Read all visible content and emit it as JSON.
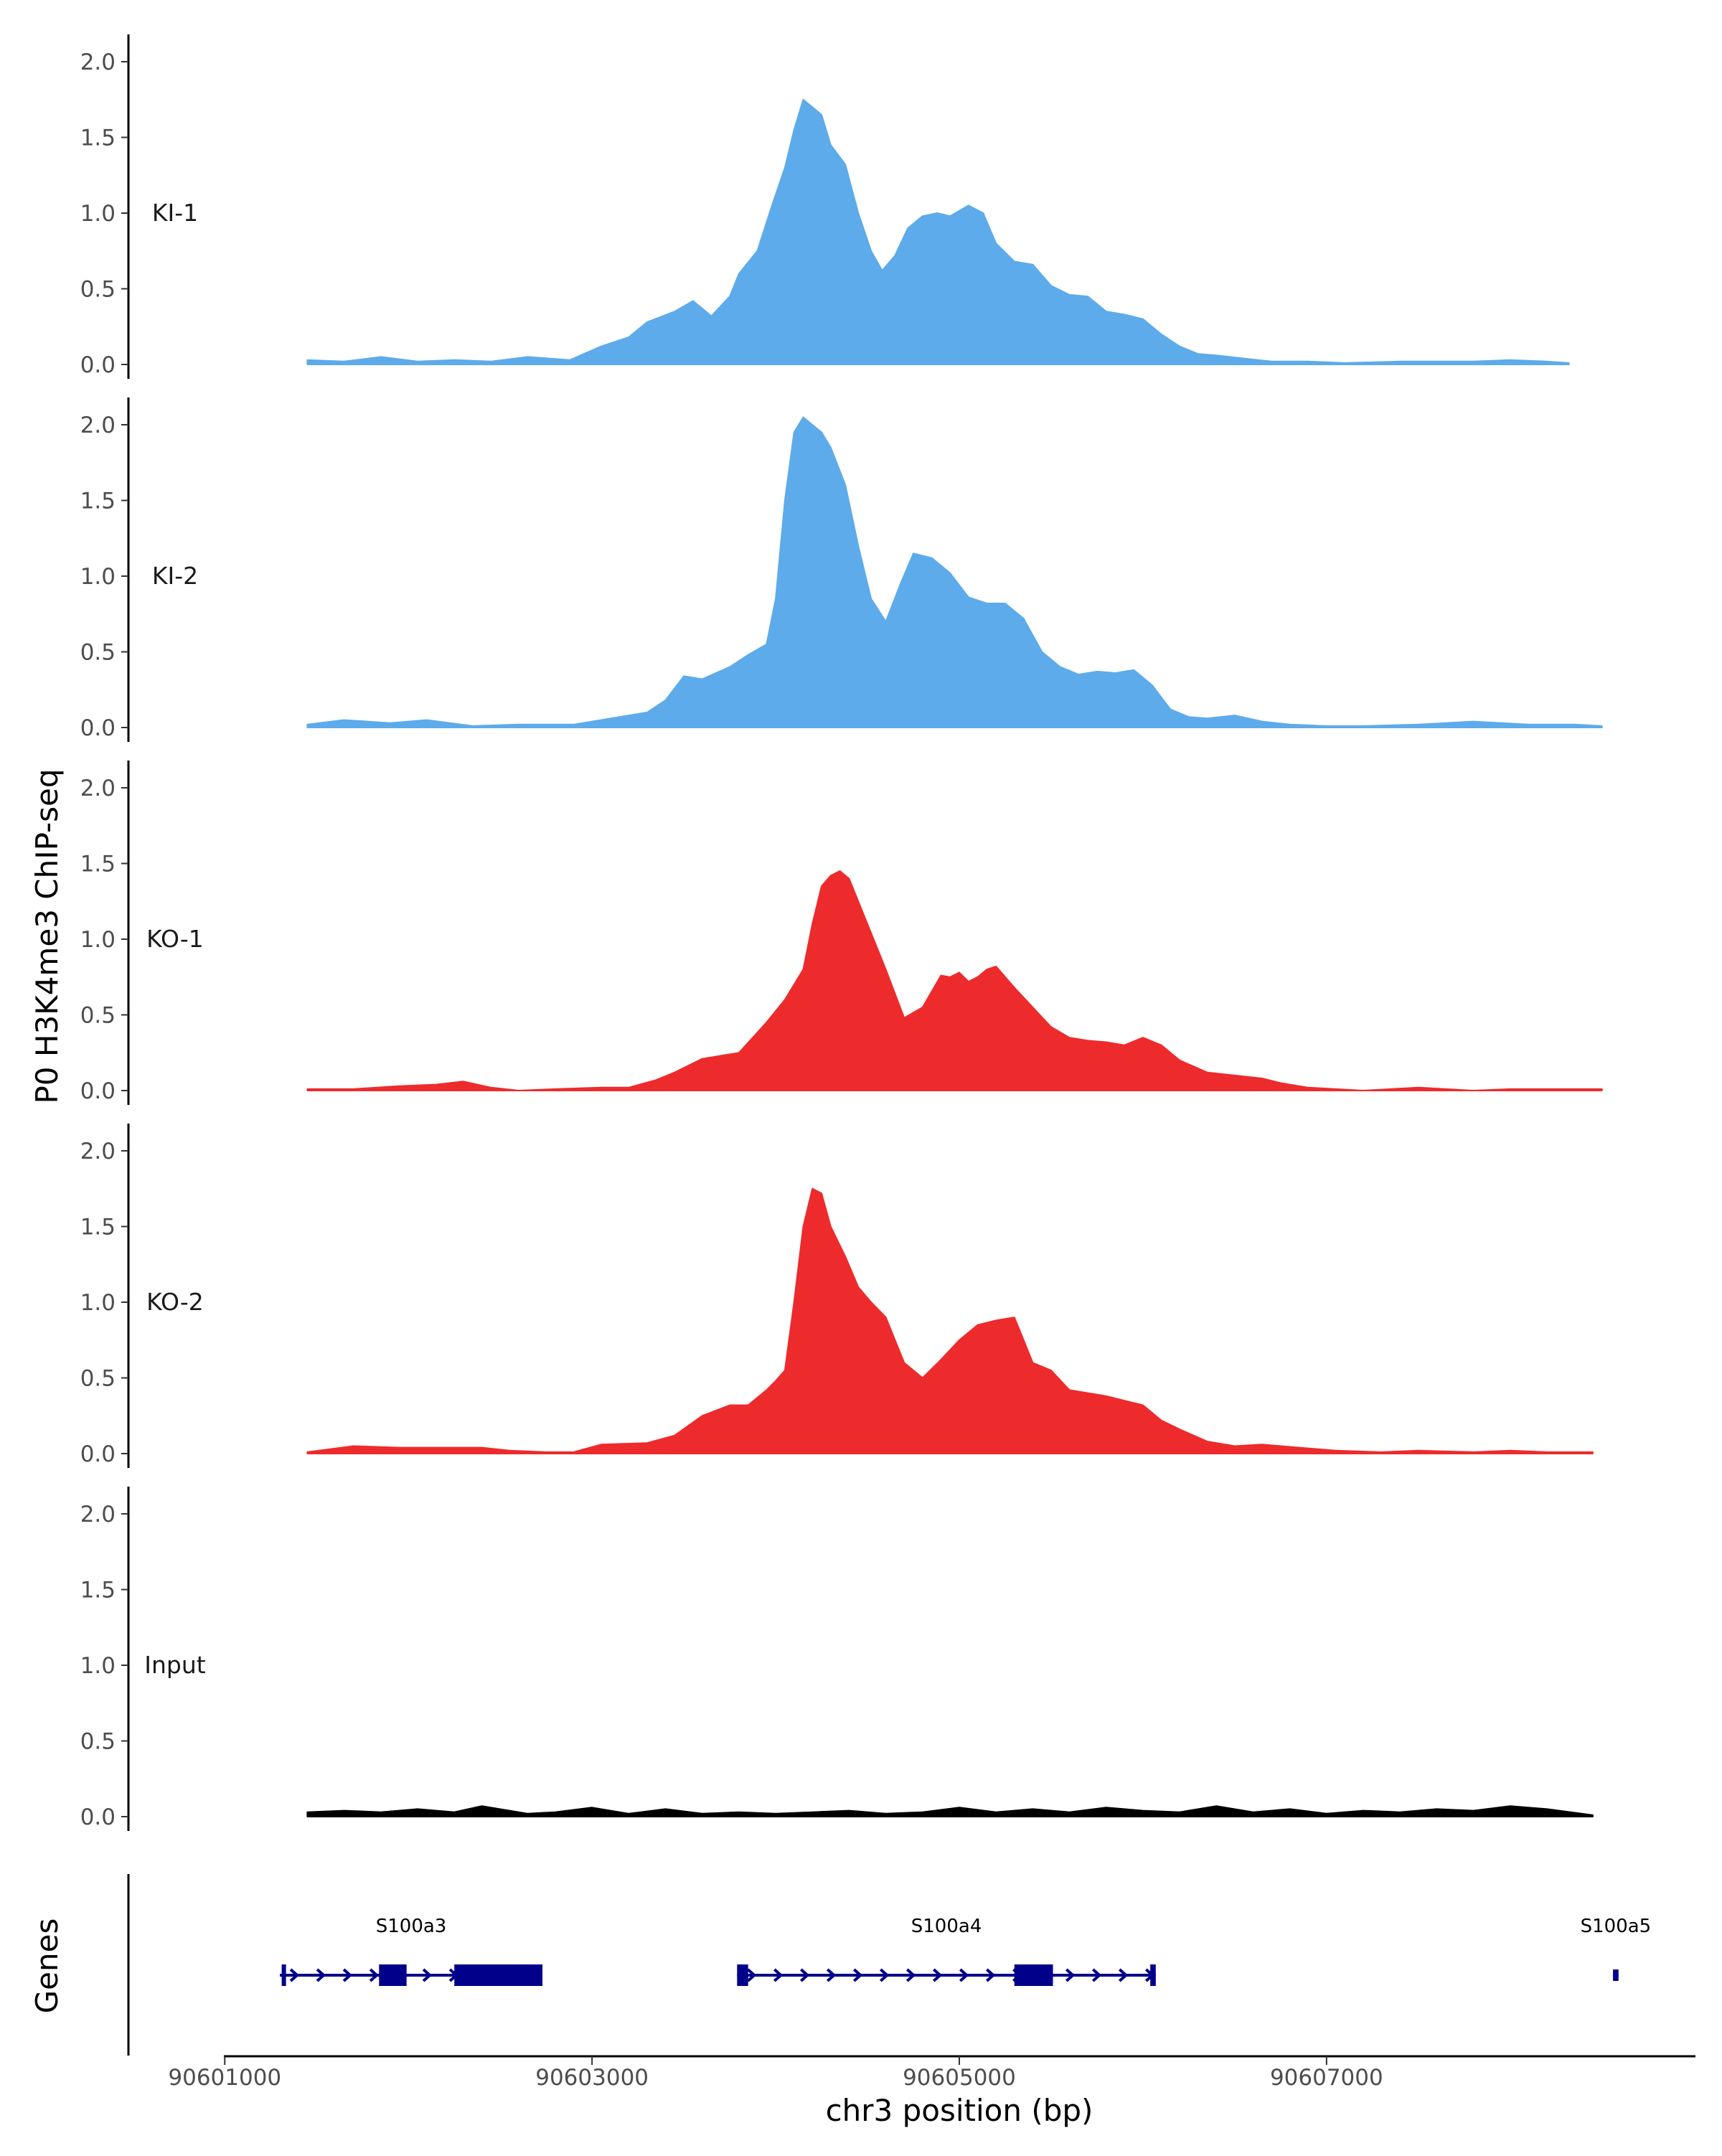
{
  "chart_data": {
    "type": "area",
    "ylabel": "P0 H3K4me3 ChIP-seq",
    "xlabel": "chr3 position (bp)",
    "ylim": [
      0,
      2.1
    ],
    "xlim": [
      90600995,
      90609009
    ],
    "y_ticks": [
      "0.0",
      "0.5",
      "1.0",
      "1.5",
      "2.0"
    ],
    "x_ticks": [
      {
        "value": 90601000,
        "label": "90601000"
      },
      {
        "value": 90603000,
        "label": "90603000"
      },
      {
        "value": 90605000,
        "label": "90605000"
      },
      {
        "value": 90607000,
        "label": "90607000"
      }
    ],
    "grid": false,
    "legend": "none",
    "tracks": [
      {
        "name": "KI-1",
        "color": "#5dabeb",
        "x": [
          90601450,
          90601650,
          90601850,
          90602050,
          90602250,
          90602450,
          90602650,
          90602880,
          90603050,
          90603200,
          90603300,
          90603450,
          90603550,
          90603650,
          90603750,
          90603800,
          90603900,
          90603980,
          90604050,
          90604100,
          90604150,
          90604200,
          90604250,
          90604300,
          90604380,
          90604450,
          90604520,
          90604580,
          90604650,
          90604720,
          90604800,
          90604880,
          90604950,
          90605050,
          90605130,
          90605200,
          90605300,
          90605400,
          90605500,
          90605600,
          90605700,
          90605800,
          90605900,
          90606000,
          90606100,
          90606200,
          90606300,
          90606400,
          90606550,
          90606700,
          90606900,
          90607100,
          90607400,
          90607800,
          90608000,
          90608200,
          90608320
        ],
        "values": [
          0.03,
          0.02,
          0.05,
          0.02,
          0.03,
          0.02,
          0.05,
          0.03,
          0.12,
          0.18,
          0.28,
          0.35,
          0.42,
          0.32,
          0.45,
          0.6,
          0.75,
          1.05,
          1.3,
          1.55,
          1.75,
          1.7,
          1.65,
          1.45,
          1.32,
          1.0,
          0.75,
          0.62,
          0.72,
          0.9,
          0.98,
          1.0,
          0.98,
          1.05,
          1.0,
          0.8,
          0.68,
          0.66,
          0.52,
          0.46,
          0.45,
          0.35,
          0.33,
          0.3,
          0.2,
          0.12,
          0.07,
          0.06,
          0.04,
          0.02,
          0.02,
          0.01,
          0.02,
          0.02,
          0.03,
          0.02,
          0.01
        ]
      },
      {
        "name": "KI-2",
        "color": "#5dabeb",
        "x": [
          90601450,
          90601650,
          90601900,
          90602100,
          90602350,
          90602600,
          90602900,
          90603100,
          90603300,
          90603400,
          90603500,
          90603600,
          90603750,
          90603850,
          90603950,
          90604000,
          90604050,
          90604100,
          90604150,
          90604200,
          90604250,
          90604300,
          90604380,
          90604450,
          90604520,
          90604600,
          90604680,
          90604750,
          90604850,
          90604950,
          90605050,
          90605150,
          90605250,
          90605350,
          90605450,
          90605550,
          90605650,
          90605750,
          90605850,
          90605950,
          90606050,
          90606150,
          90606250,
          90606350,
          90606500,
          90606650,
          90606800,
          90607000,
          90607200,
          90607500,
          90607800,
          90608100,
          90608350,
          90608500
        ],
        "values": [
          0.02,
          0.05,
          0.03,
          0.05,
          0.01,
          0.02,
          0.02,
          0.06,
          0.1,
          0.18,
          0.34,
          0.32,
          0.4,
          0.48,
          0.55,
          0.85,
          1.5,
          1.95,
          2.05,
          2.0,
          1.95,
          1.85,
          1.6,
          1.2,
          0.85,
          0.7,
          0.95,
          1.15,
          1.12,
          1.02,
          0.86,
          0.82,
          0.82,
          0.72,
          0.5,
          0.4,
          0.35,
          0.37,
          0.36,
          0.38,
          0.28,
          0.12,
          0.07,
          0.06,
          0.08,
          0.04,
          0.02,
          0.01,
          0.01,
          0.02,
          0.04,
          0.02,
          0.02,
          0.01
        ]
      },
      {
        "name": "KO-1",
        "color": "#ee2b2c",
        "x": [
          90601450,
          90601700,
          90601950,
          90602150,
          90602300,
          90602450,
          90602600,
          90602800,
          90603050,
          90603200,
          90603350,
          90603450,
          90603600,
          90603800,
          90603950,
          90604050,
          90604150,
          90604200,
          90604250,
          90604300,
          90604350,
          90604400,
          90604500,
          90604600,
          90604700,
          90604800,
          90604900,
          90604950,
          90605000,
          90605050,
          90605100,
          90605150,
          90605200,
          90605300,
          90605400,
          90605500,
          90605600,
          90605700,
          90605800,
          90605900,
          90606000,
          90606100,
          90606200,
          90606350,
          90606500,
          90606650,
          90606750,
          90606900,
          90607200,
          90607500,
          90607800,
          90608000,
          90608200,
          90608500
        ],
        "values": [
          0.01,
          0.01,
          0.03,
          0.04,
          0.06,
          0.02,
          0.0,
          0.01,
          0.02,
          0.02,
          0.07,
          0.12,
          0.21,
          0.25,
          0.45,
          0.6,
          0.8,
          1.1,
          1.35,
          1.42,
          1.45,
          1.4,
          1.1,
          0.8,
          0.48,
          0.55,
          0.76,
          0.75,
          0.78,
          0.72,
          0.75,
          0.8,
          0.82,
          0.68,
          0.55,
          0.42,
          0.35,
          0.33,
          0.32,
          0.3,
          0.35,
          0.3,
          0.2,
          0.12,
          0.1,
          0.08,
          0.05,
          0.02,
          0.0,
          0.02,
          0.0,
          0.01,
          0.01,
          0.01
        ]
      },
      {
        "name": "KO-2",
        "color": "#ee2b2c",
        "x": [
          90601450,
          90601700,
          90601950,
          90602200,
          90602400,
          90602550,
          90602750,
          90602900,
          90603050,
          90603300,
          90603450,
          90603600,
          90603750,
          90603850,
          90603950,
          90604000,
          90604050,
          90604100,
          90604150,
          90604200,
          90604250,
          90604300,
          90604380,
          90604450,
          90604520,
          90604600,
          90604700,
          90604800,
          90604900,
          90605000,
          90605100,
          90605200,
          90605300,
          90605350,
          90605400,
          90605500,
          90605600,
          90605700,
          90605800,
          90605900,
          90606000,
          90606100,
          90606200,
          90606350,
          90606500,
          90606650,
          90606850,
          90607050,
          90607300,
          90607500,
          90607800,
          90608000,
          90608200,
          90608450
        ],
        "values": [
          0.01,
          0.05,
          0.04,
          0.04,
          0.04,
          0.02,
          0.01,
          0.01,
          0.06,
          0.07,
          0.12,
          0.25,
          0.32,
          0.32,
          0.42,
          0.48,
          0.55,
          1.0,
          1.5,
          1.75,
          1.72,
          1.5,
          1.3,
          1.1,
          1.0,
          0.9,
          0.6,
          0.5,
          0.62,
          0.75,
          0.85,
          0.88,
          0.9,
          0.75,
          0.6,
          0.55,
          0.42,
          0.4,
          0.38,
          0.35,
          0.32,
          0.22,
          0.16,
          0.08,
          0.05,
          0.06,
          0.04,
          0.02,
          0.01,
          0.02,
          0.01,
          0.02,
          0.01,
          0.01
        ]
      },
      {
        "name": "Input",
        "color": "#000000",
        "x": [
          90601450,
          90601650,
          90601850,
          90602050,
          90602250,
          90602400,
          90602650,
          90602800,
          90603000,
          90603200,
          90603400,
          90603600,
          90603800,
          90604000,
          90604200,
          90604400,
          90604600,
          90604800,
          90605000,
          90605200,
          90605400,
          90605600,
          90605800,
          90606000,
          90606200,
          90606400,
          90606600,
          90606800,
          90607000,
          90607200,
          90607400,
          90607600,
          90607800,
          90608000,
          90608200,
          90608450
        ],
        "values": [
          0.03,
          0.04,
          0.03,
          0.05,
          0.03,
          0.07,
          0.02,
          0.03,
          0.06,
          0.02,
          0.05,
          0.02,
          0.03,
          0.02,
          0.03,
          0.04,
          0.02,
          0.03,
          0.06,
          0.03,
          0.05,
          0.03,
          0.06,
          0.04,
          0.03,
          0.07,
          0.03,
          0.05,
          0.02,
          0.04,
          0.03,
          0.05,
          0.04,
          0.07,
          0.05,
          0.01
        ]
      }
    ],
    "genes_track": {
      "title": "Genes",
      "color": "#00008b",
      "genes": [
        {
          "name": "S100a3",
          "start": 90601300,
          "end": 90602730,
          "exons": [
            [
              90601310,
              90601330
            ],
            [
              90601840,
              90601990
            ],
            [
              90602250,
              90602730
            ]
          ],
          "strand": "+"
        },
        {
          "name": "S100a4",
          "start": 90603790,
          "end": 90606070,
          "exons": [
            [
              90603790,
              90603850
            ],
            [
              90605300,
              90605510
            ],
            [
              90606040,
              90606070
            ]
          ],
          "strand": "+"
        },
        {
          "name": "S100a5",
          "start": 90608560,
          "end": 90608590,
          "exons": [
            [
              90608560,
              90608590
            ]
          ],
          "strand": "+"
        }
      ]
    }
  }
}
